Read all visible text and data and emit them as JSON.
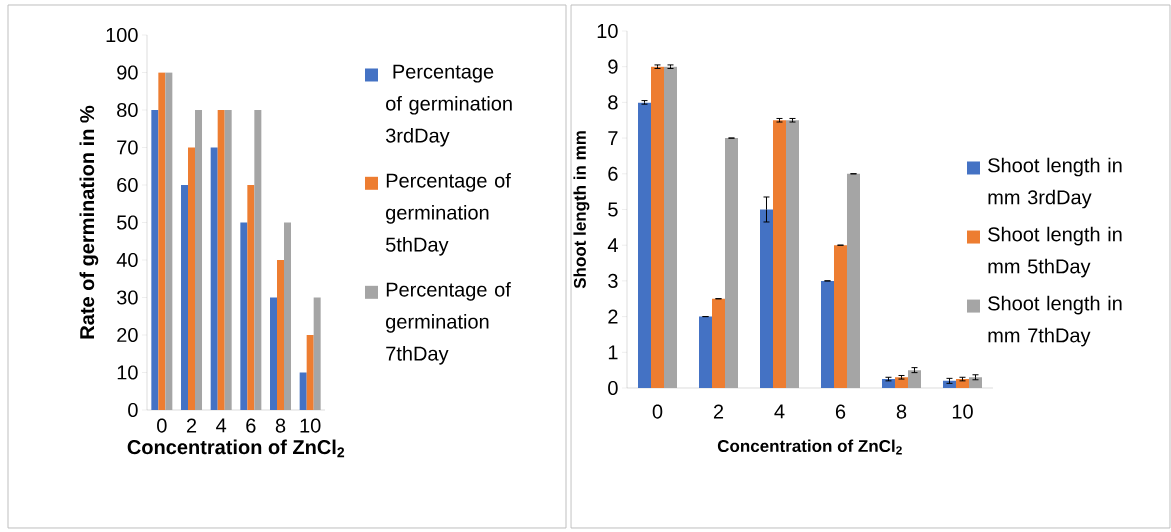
{
  "chart_data": [
    {
      "type": "bar",
      "categories": [
        "0",
        "2",
        "4",
        "6",
        "8",
        "10"
      ],
      "xlabel": "Concentration of ZnCl$_{2}$",
      "ylabel": "Rate of germination in %",
      "ylim": [
        0,
        100
      ],
      "yticks": [
        0,
        10,
        20,
        30,
        40,
        50,
        60,
        70,
        80,
        90,
        100
      ],
      "legend": "right",
      "series": [
        {
          "name": " Percentage of germination 3rdDay",
          "color": "#4472c4",
          "values": [
            80,
            60,
            70,
            50,
            30,
            10
          ]
        },
        {
          "name": "Percentage of germination 5thDay",
          "color": "#ed7d31",
          "values": [
            90,
            70,
            80,
            60,
            40,
            20
          ]
        },
        {
          "name": "Percentage of germination 7thDay",
          "color": "#a5a5a5",
          "values": [
            90,
            80,
            80,
            80,
            50,
            30
          ]
        }
      ]
    },
    {
      "type": "bar",
      "categories": [
        "0",
        "2",
        "4",
        "6",
        "8",
        "10"
      ],
      "xlabel": "Concentration of ZnCl$_{2}$",
      "ylabel": "Shoot length in mm",
      "ylim": [
        0,
        10
      ],
      "yticks": [
        0,
        1,
        2,
        3,
        4,
        5,
        6,
        7,
        8,
        9,
        10
      ],
      "legend": "right",
      "series": [
        {
          "name": "Shoot length in mm 3rdDay",
          "color": "#4472c4",
          "values": [
            8,
            2,
            5,
            3,
            0.25,
            0.2
          ],
          "errors": [
            0.05,
            0,
            0.35,
            0,
            0.05,
            0.07
          ]
        },
        {
          "name": "Shoot length in mm 5thDay",
          "color": "#ed7d31",
          "values": [
            9,
            2.5,
            7.5,
            4,
            0.3,
            0.25
          ],
          "errors": [
            0.05,
            0,
            0.05,
            0,
            0.05,
            0.05
          ]
        },
        {
          "name": "Shoot length in mm 7thDay",
          "color": "#a5a5a5",
          "values": [
            9,
            7,
            7.5,
            6,
            0.5,
            0.3
          ],
          "errors": [
            0.05,
            0,
            0.05,
            0,
            0.07,
            0.07
          ]
        }
      ]
    }
  ]
}
